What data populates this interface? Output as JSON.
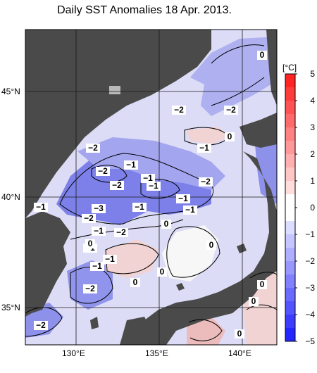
{
  "title": "Daily SST Anomalies 18 Apr. 2013.",
  "map": {
    "lat_labels": [
      "45°N",
      "40°N",
      "35°N"
    ],
    "lon_labels": [
      "130°E",
      "135°E",
      "140°E"
    ]
  },
  "colorbar": {
    "unit": "[°C]",
    "ticks": [
      "5",
      "4",
      "3",
      "2",
      "1",
      "0",
      "−1",
      "−2",
      "−3",
      "−4",
      "−5"
    ],
    "colors": {
      "land": "#4a4a4a",
      "strong_neg": "#6f72e6",
      "mid_neg": "#a9aaf0",
      "weak_neg": "#d8d8f6",
      "neutral": "#f7f7f7",
      "weak_pos": "#f4d6d6",
      "mid_pos": "#eab1b1"
    }
  },
  "contour_labels": [
    "−2",
    "−2",
    "−2",
    "−2",
    "−1",
    "−1",
    "−2",
    "−1",
    "−1",
    "−3",
    "−2",
    "−1",
    "−2",
    "−1",
    "−1",
    "−2",
    "−1",
    "−2",
    "−2",
    "−1",
    "−1",
    "−1",
    "−1",
    "0",
    "0",
    "0",
    "0",
    "0",
    "0",
    "0",
    "0",
    "0",
    "0"
  ]
}
